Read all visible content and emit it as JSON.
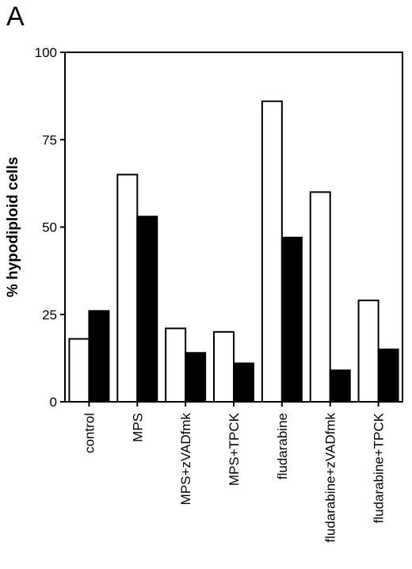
{
  "panel_label": "A",
  "chart_data": {
    "type": "bar",
    "ylabel": "% hypodiploid cells",
    "ylim": [
      0,
      100
    ],
    "yticks": [
      0,
      25,
      50,
      75,
      100
    ],
    "categories": [
      "control",
      "MPS",
      "MPS+zVADfmk",
      "MPS+TPCK",
      "fludarabine",
      "fludarabine+zVADfmk",
      "fludarabine+TPCK"
    ],
    "series": [
      {
        "fill": "#ffffff",
        "values": [
          18,
          65,
          21,
          20,
          86,
          60,
          29
        ]
      },
      {
        "fill": "#000000",
        "values": [
          26,
          53,
          14,
          11,
          47,
          9,
          15
        ]
      }
    ],
    "grid": false,
    "legend": "none"
  }
}
